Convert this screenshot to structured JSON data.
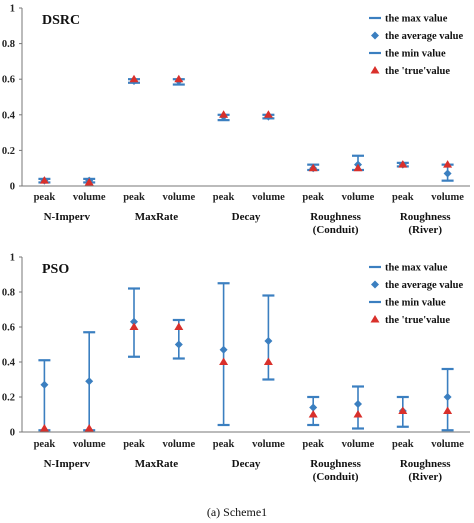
{
  "caption": "(a) Scheme1",
  "chart_data": [
    {
      "type": "errorbar",
      "title": "DSRC",
      "ylim": [
        0,
        1
      ],
      "yticks": [
        "0",
        "0.2",
        "0.4",
        "0.6",
        "0.8",
        "1"
      ],
      "x_sub": [
        "peak",
        "volume",
        "peak",
        "volume",
        "peak",
        "volume",
        "peak",
        "volume",
        "peak",
        "volume"
      ],
      "groups": [
        {
          "line1": "N-Imperv",
          "line2": ""
        },
        {
          "line1": "MaxRate",
          "line2": ""
        },
        {
          "line1": "Decay",
          "line2": ""
        },
        {
          "line1": "Roughness",
          "line2": "(Conduit)"
        },
        {
          "line1": "Roughness",
          "line2": "(River)"
        }
      ],
      "legend": {
        "placement": "top-right",
        "items": [
          "the max value",
          "the average value",
          "the min value",
          "the 'true'value"
        ]
      },
      "series": {
        "max": [
          0.04,
          0.04,
          0.6,
          0.6,
          0.4,
          0.4,
          0.12,
          0.17,
          0.13,
          0.12
        ],
        "average": [
          0.03,
          0.03,
          0.59,
          0.59,
          0.39,
          0.39,
          0.1,
          0.12,
          0.12,
          0.07
        ],
        "min": [
          0.02,
          0.02,
          0.58,
          0.57,
          0.37,
          0.38,
          0.09,
          0.09,
          0.11,
          0.03
        ],
        "true": [
          0.03,
          0.02,
          0.6,
          0.6,
          0.4,
          0.4,
          0.1,
          0.1,
          0.12,
          0.12
        ]
      },
      "colors": {
        "bar": "#3b7fc0",
        "average": "#3b7fc0",
        "true": "#d9302b"
      }
    },
    {
      "type": "errorbar",
      "title": "PSO",
      "ylim": [
        0,
        1
      ],
      "yticks": [
        "0",
        "0.2",
        "0.4",
        "0.6",
        "0.8",
        "1"
      ],
      "x_sub": [
        "peak",
        "volume",
        "peak",
        "volume",
        "peak",
        "volume",
        "peak",
        "volume",
        "peak",
        "volume"
      ],
      "groups": [
        {
          "line1": "N-Imperv",
          "line2": ""
        },
        {
          "line1": "MaxRate",
          "line2": ""
        },
        {
          "line1": "Decay",
          "line2": ""
        },
        {
          "line1": "Roughness",
          "line2": "(Conduit)"
        },
        {
          "line1": "Roughness",
          "line2": "(River)"
        }
      ],
      "legend": {
        "placement": "top-right",
        "items": [
          "the max value",
          "the average value",
          "the min value",
          "the 'true'value"
        ]
      },
      "series": {
        "max": [
          0.41,
          0.57,
          0.82,
          0.64,
          0.85,
          0.78,
          0.2,
          0.26,
          0.2,
          0.36
        ],
        "average": [
          0.27,
          0.29,
          0.63,
          0.5,
          0.47,
          0.52,
          0.14,
          0.16,
          0.12,
          0.2
        ],
        "min": [
          0.01,
          0.01,
          0.43,
          0.42,
          0.04,
          0.3,
          0.04,
          0.02,
          0.03,
          0.01
        ],
        "true": [
          0.02,
          0.02,
          0.6,
          0.6,
          0.4,
          0.4,
          0.1,
          0.1,
          0.12,
          0.12
        ]
      },
      "colors": {
        "bar": "#3b7fc0",
        "average": "#3b7fc0",
        "true": "#d9302b"
      }
    }
  ]
}
